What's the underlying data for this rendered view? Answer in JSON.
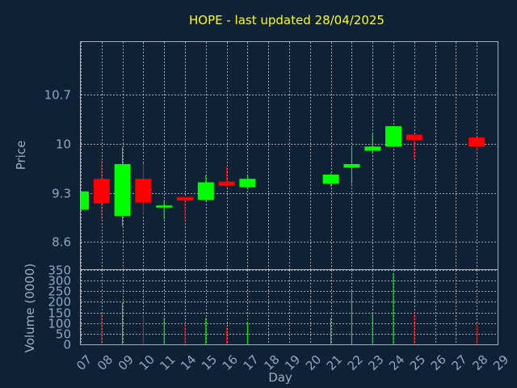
{
  "chart_data": {
    "type": "candlestick",
    "title": "HOPE - last updated 28/04/2025",
    "xlabel": "Day",
    "ylabel_price": "Price",
    "ylabel_volume": "Volume (0000)",
    "x_ticks": [
      "07",
      "08",
      "09",
      "10",
      "11",
      "14",
      "15",
      "16",
      "17",
      "18",
      "19",
      "20",
      "21",
      "22",
      "23",
      "24",
      "25",
      "26",
      "27",
      "28",
      "29"
    ],
    "price_ticks": [
      "8.6",
      "9.3",
      "10",
      "10.7"
    ],
    "price_ylim": [
      8.2,
      11.45
    ],
    "volume_ticks": [
      "0",
      "50",
      "100",
      "150",
      "200",
      "250",
      "300",
      "350"
    ],
    "volume_ylim": [
      0,
      350
    ],
    "up_color": "#00ff00",
    "down_color": "#ff0000",
    "candles": [
      {
        "day": "07",
        "open": 9.06,
        "high": 9.32,
        "low": 9.06,
        "close": 9.32,
        "volume": 0
      },
      {
        "day": "08",
        "open": 9.5,
        "high": 9.76,
        "low": 8.92,
        "close": 9.15,
        "volume": 145
      },
      {
        "day": "09",
        "open": 8.97,
        "high": 9.95,
        "low": 8.82,
        "close": 9.71,
        "volume": 195
      },
      {
        "day": "10",
        "open": 9.5,
        "high": 9.72,
        "low": 8.98,
        "close": 9.16,
        "volume": 140
      },
      {
        "day": "11",
        "open": 9.09,
        "high": 9.2,
        "low": 8.92,
        "close": 9.12,
        "volume": 125
      },
      {
        "day": "14",
        "open": 9.24,
        "high": 9.24,
        "low": 8.9,
        "close": 9.19,
        "volume": 100
      },
      {
        "day": "15",
        "open": 9.2,
        "high": 9.55,
        "low": 9.18,
        "close": 9.45,
        "volume": 125
      },
      {
        "day": "16",
        "open": 9.46,
        "high": 9.67,
        "low": 9.38,
        "close": 9.4,
        "volume": 80
      },
      {
        "day": "17",
        "open": 9.38,
        "high": 9.54,
        "low": 9.36,
        "close": 9.5,
        "volume": 105
      },
      {
        "day": "21",
        "open": 9.43,
        "high": 9.58,
        "low": 9.39,
        "close": 9.56,
        "volume": 125
      },
      {
        "day": "22",
        "open": 9.66,
        "high": 9.95,
        "low": 9.43,
        "close": 9.71,
        "volume": 250
      },
      {
        "day": "23",
        "open": 9.9,
        "high": 10.15,
        "low": 9.86,
        "close": 9.96,
        "volume": 150
      },
      {
        "day": "24",
        "open": 9.96,
        "high": 10.25,
        "low": 9.96,
        "close": 10.25,
        "volume": 335
      },
      {
        "day": "25",
        "open": 10.13,
        "high": 10.13,
        "low": 9.78,
        "close": 10.05,
        "volume": 150
      },
      {
        "day": "28",
        "open": 10.09,
        "high": 10.09,
        "low": 9.9,
        "close": 9.96,
        "volume": 95
      }
    ]
  }
}
